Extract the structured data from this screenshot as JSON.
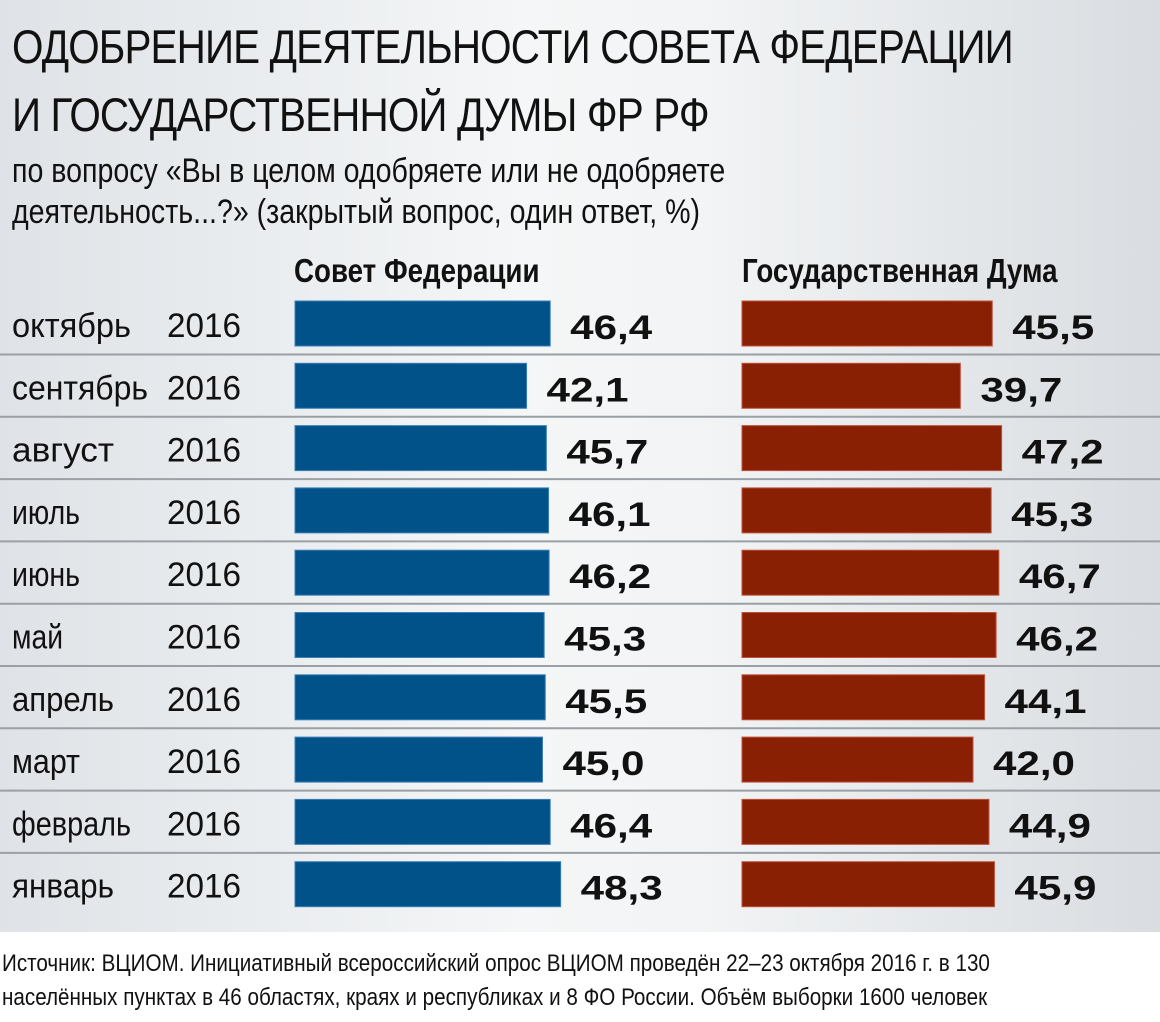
{
  "title_lines": [
    "ОДОБРЕНИЕ ДЕЯТЕЛЬНОСТИ СОВЕТА ФЕДЕРАЦИИ",
    "И ГОСУДАРСТВЕННОЙ ДУМЫ ФР РФ"
  ],
  "subtitle_lines": [
    "по вопросу «Вы в целом одобряете или не одобряете",
    "деятельность...?» (закрытый вопрос, один ответ, %)"
  ],
  "footer_lines": [
    "Источник: ВЦИОМ. Инициативный всероссийский опрос ВЦИОМ проведён 22–23 октября 2016 г. в 130",
    "населённых пунктах в 46 областях, краях и республиках и 8 ФО России. Объём выборки 1600 человек"
  ],
  "colors": {
    "sovet": "#02528a",
    "duma": "#8a2003"
  },
  "chart_data": {
    "type": "bar",
    "orientation": "horizontal",
    "title": "ОДОБРЕНИЕ ДЕЯТЕЛЬНОСТИ СОВЕТА ФЕДЕРАЦИИ И ГОСУДАРСТВЕННОЙ ДУМЫ ФР РФ",
    "xlabel": "",
    "ylabel": "%",
    "grid": false,
    "legend": "top",
    "categories": [
      {
        "month": "октябрь",
        "year": "2016"
      },
      {
        "month": "сентябрь",
        "year": "2016"
      },
      {
        "month": "август",
        "year": "2016"
      },
      {
        "month": "июль",
        "year": "2016"
      },
      {
        "month": "июнь",
        "year": "2016"
      },
      {
        "month": "май",
        "year": "2016"
      },
      {
        "month": "апрель",
        "year": "2016"
      },
      {
        "month": "март",
        "year": "2016"
      },
      {
        "month": "февраль",
        "year": "2016"
      },
      {
        "month": "январь",
        "year": "2016"
      }
    ],
    "series": [
      {
        "name": "Совет Федерации",
        "values": [
          46.4,
          42.1,
          45.7,
          46.1,
          46.2,
          45.3,
          45.5,
          45.0,
          46.4,
          48.3
        ],
        "labels": [
          "46,4",
          "42,1",
          "45,7",
          "46,1",
          "46,2",
          "45,3",
          "45,5",
          "45,0",
          "46,4",
          "48,3"
        ]
      },
      {
        "name": "Государственная Дума",
        "values": [
          45.5,
          39.7,
          47.2,
          45.3,
          46.7,
          46.2,
          44.1,
          42.0,
          44.9,
          45.9
        ],
        "labels": [
          "45,5",
          "39,7",
          "47,2",
          "45,3",
          "46,7",
          "46,2",
          "44,1",
          "42,0",
          "44,9",
          "45,9"
        ]
      }
    ]
  }
}
